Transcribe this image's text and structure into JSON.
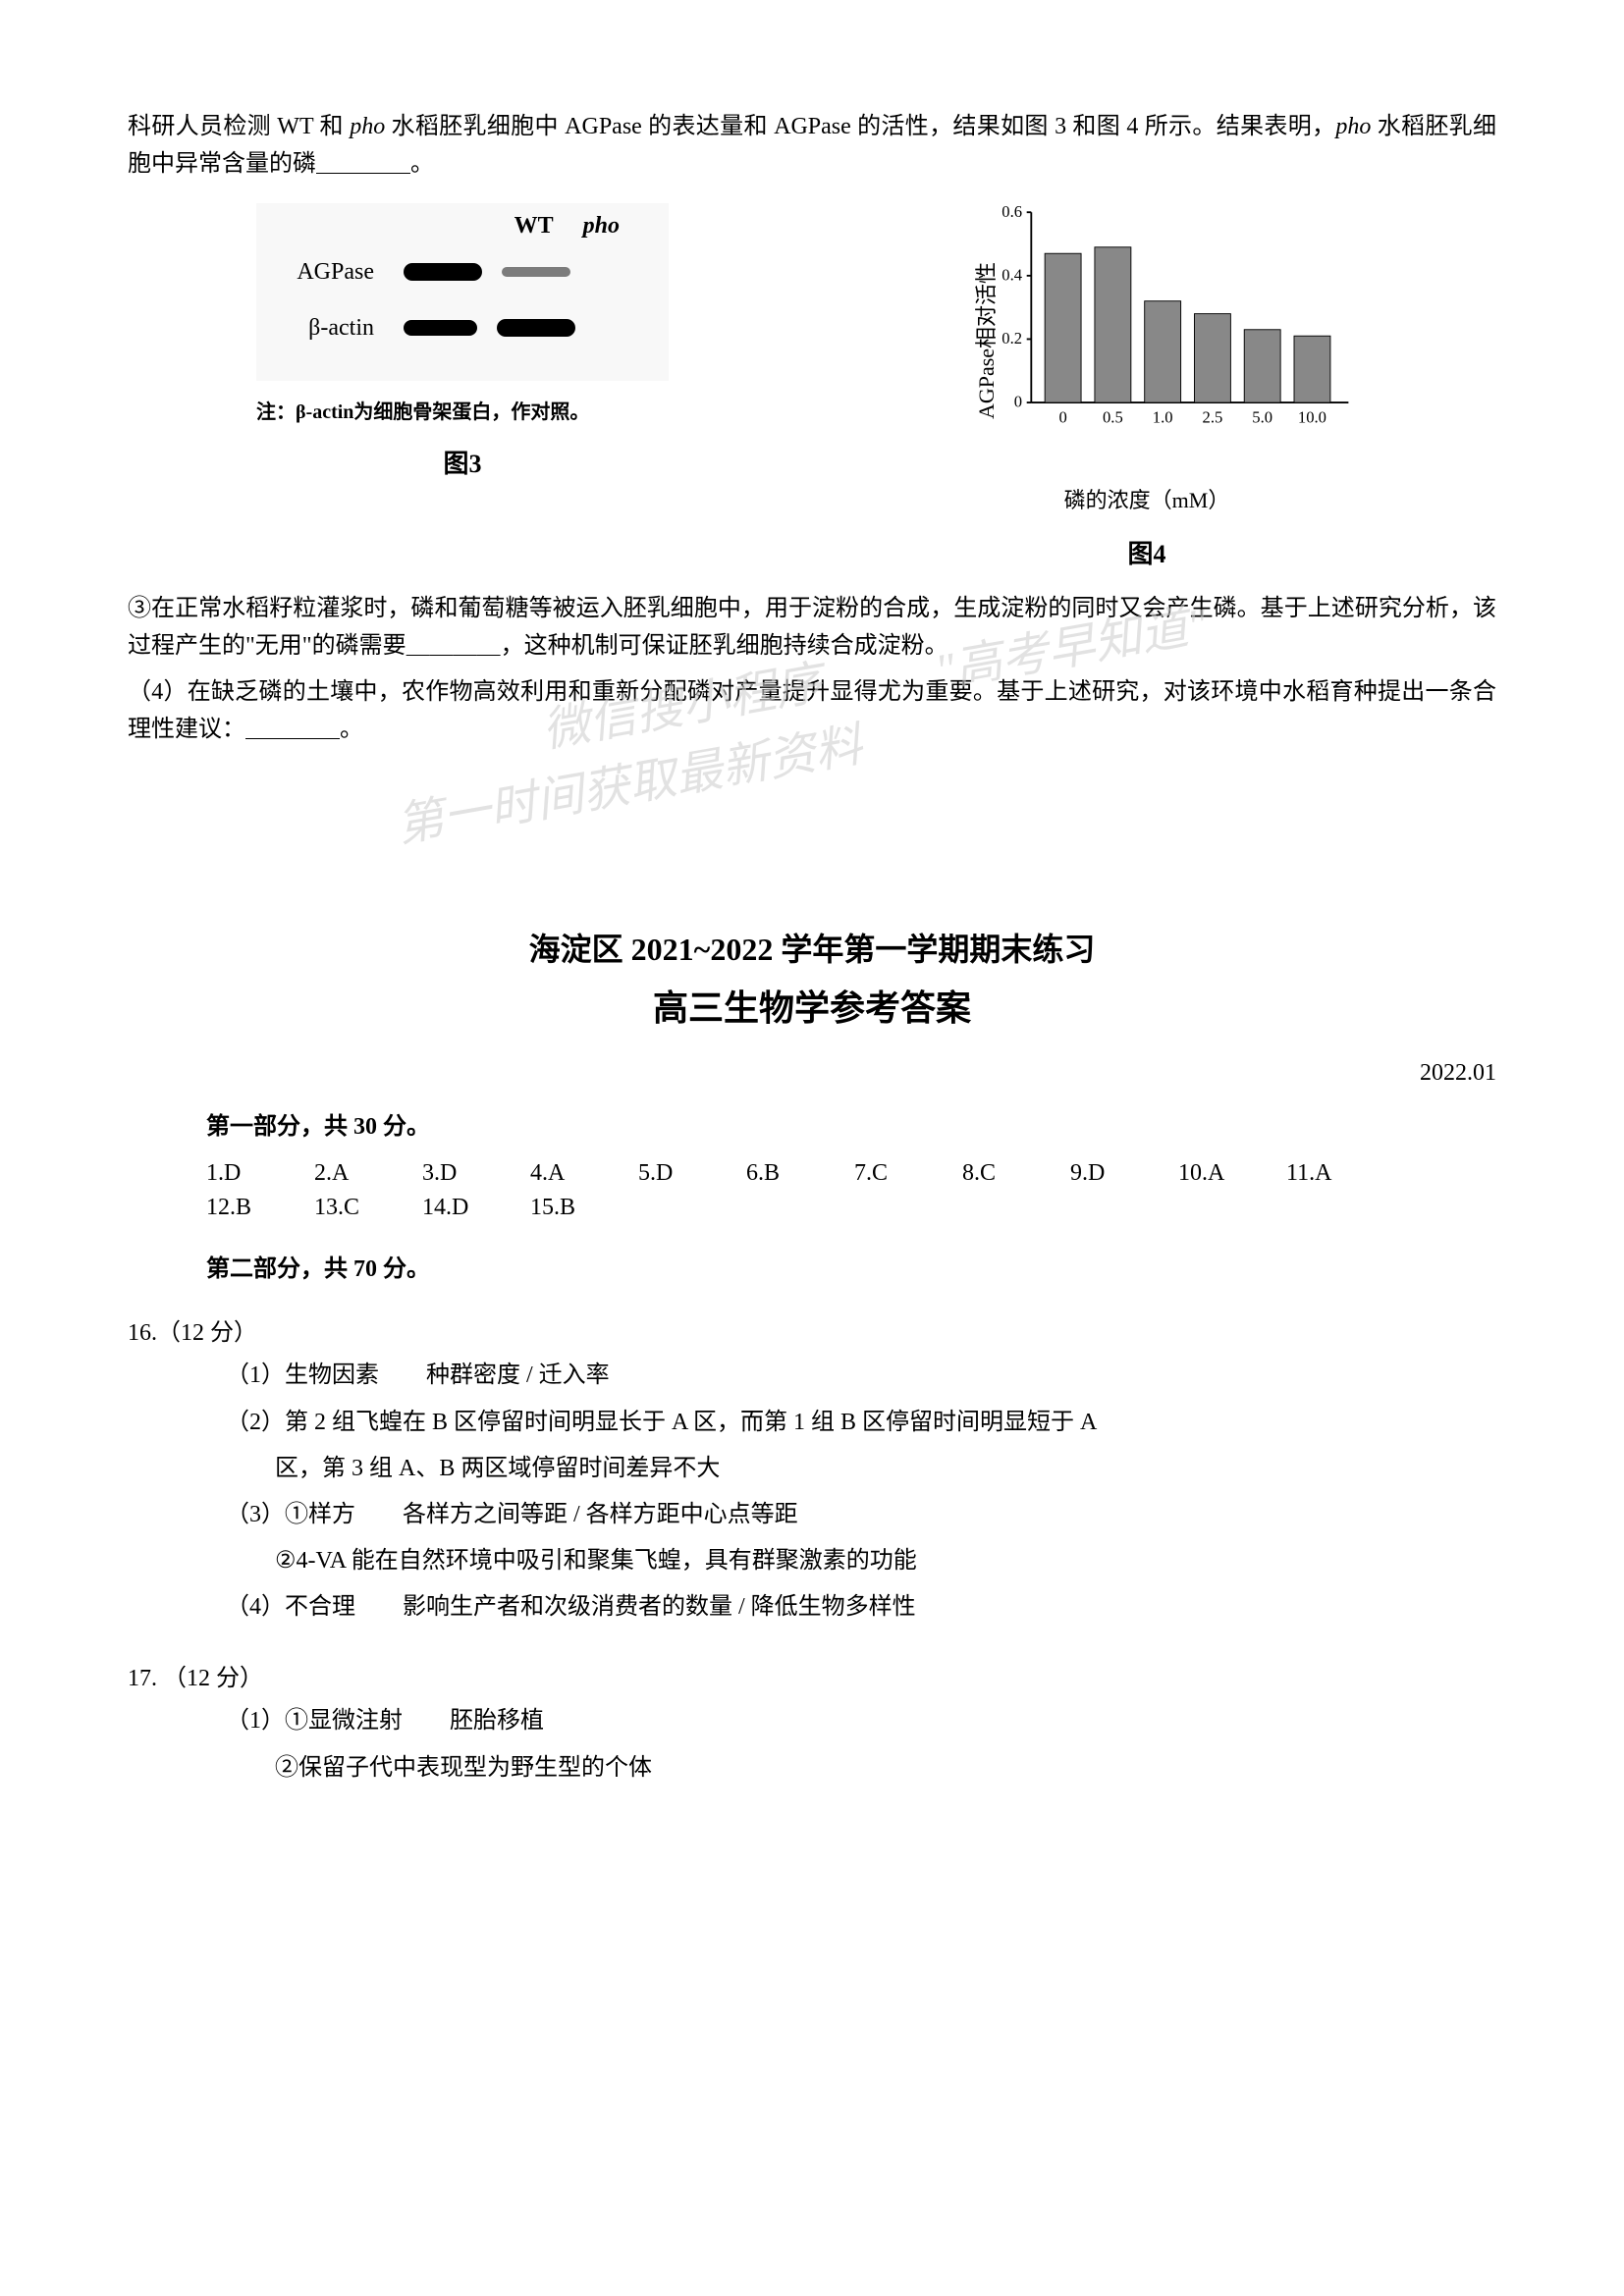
{
  "intro_text": {
    "line1_prefix": "科研人员检测 WT 和 ",
    "line1_italic1": "pho",
    "line1_mid": " 水稻胚乳细胞中 AGPase 的表达量和 AGPase 的活性，结果如图 3 和图 4 所示。结果表明，",
    "line1_italic2": "pho",
    "line1_suffix": " 水稻胚乳细胞中异常含量的磷＿＿＿＿。"
  },
  "figure3": {
    "header_wt": "WT",
    "header_pho": "pho",
    "row1_label": "AGPase",
    "row2_label": "β-actin",
    "note": "注：β-actin为细胞骨架蛋白，作对照。",
    "caption": "图3"
  },
  "figure4": {
    "type": "bar",
    "y_label": "AGPase相对活性",
    "x_label": "磷的浓度（mM）",
    "categories": [
      "0",
      "0.5",
      "1.0",
      "2.5",
      "5.0",
      "10.0"
    ],
    "values": [
      0.47,
      0.49,
      0.32,
      0.28,
      0.23,
      0.21
    ],
    "ylim": [
      0,
      0.6
    ],
    "ytick_step": 0.2,
    "y_ticks": [
      "0",
      "0.2",
      "0.4",
      "0.6"
    ],
    "bar_color": "#888888",
    "bar_border": "#000000",
    "axis_color": "#000000",
    "caption": "图4"
  },
  "question3": {
    "text": "③在正常水稻籽粒灌浆时，磷和葡萄糖等被运入胚乳细胞中，用于淀粉的合成，生成淀粉的同时又会产生磷。基于上述研究分析，该过程产生的\"无用\"的磷需要＿＿＿＿，这种机制可保证胚乳细胞持续合成淀粉。"
  },
  "question4": {
    "text": "（4）在缺乏磷的土壤中，农作物高效利用和重新分配磷对产量提升显得尤为重要。基于上述研究，对该环境中水稻育种提出一条合理性建议：＿＿＿＿。"
  },
  "watermarks": {
    "w1": "微信搜小程序",
    "w2": "\"高考早知道\"",
    "w3": "第一时间获取最新资料"
  },
  "answer_header": {
    "title": "海淀区 2021~2022 学年第一学期期末练习",
    "subtitle": "高三生物学参考答案",
    "date": "2022.01"
  },
  "part1": {
    "header": "第一部分，共 30 分。",
    "answers": [
      {
        "num": "1",
        "ans": "D"
      },
      {
        "num": "2",
        "ans": "A"
      },
      {
        "num": "3",
        "ans": "D"
      },
      {
        "num": "4",
        "ans": "A"
      },
      {
        "num": "5",
        "ans": "D"
      },
      {
        "num": "6",
        "ans": "B"
      },
      {
        "num": "7",
        "ans": "C"
      },
      {
        "num": "8",
        "ans": "C"
      },
      {
        "num": "9",
        "ans": "D"
      },
      {
        "num": "10",
        "ans": "A"
      },
      {
        "num": "11",
        "ans": "A"
      },
      {
        "num": "12",
        "ans": "B"
      },
      {
        "num": "13",
        "ans": "C"
      },
      {
        "num": "14",
        "ans": "D"
      },
      {
        "num": "15",
        "ans": "B"
      }
    ]
  },
  "part2": {
    "header": "第二部分，共 70 分。"
  },
  "q16": {
    "header": "16.（12 分）",
    "a1": "（1）生物因素　　种群密度 / 迁入率",
    "a2": "（2）第 2 组飞蝗在 B 区停留时间明显长于 A 区，而第 1 组 B 区停留时间明显短于 A",
    "a2b": "区，第 3 组 A、B 两区域停留时间差异不大",
    "a3": "（3）①样方　　各样方之间等距 / 各样方距中心点等距",
    "a3b": "②4-VA 能在自然环境中吸引和聚集飞蝗，具有群聚激素的功能",
    "a4": "（4）不合理　　影响生产者和次级消费者的数量 / 降低生物多样性"
  },
  "q17": {
    "header": "17. （12 分）",
    "a1": "（1）①显微注射　　胚胎移植",
    "a1b": "②保留子代中表现型为野生型的个体"
  }
}
